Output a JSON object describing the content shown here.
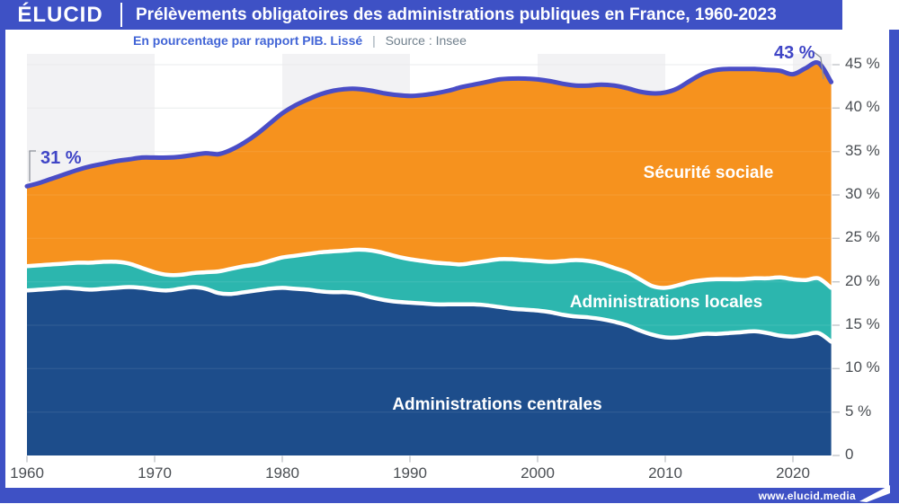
{
  "header": {
    "logo": "ÉLUCID",
    "title": "Prélèvements obligatoires des administrations publiques en France, 1960-2023"
  },
  "subtitle": {
    "metric": "En pourcentage par rapport PIB. Lissé",
    "separator": "|",
    "source": "Source : Insee"
  },
  "footer": {
    "url": "www.elucid.media",
    "flag_icon": "elucid-flag-icon"
  },
  "chart_data": {
    "type": "area",
    "stacked": true,
    "x_start": 1960,
    "x_end": 2023,
    "x_ticks": [
      "1960",
      "1970",
      "1980",
      "1990",
      "2000",
      "2010",
      "2020"
    ],
    "y_ticks": [
      "0",
      "5 %",
      "10 %",
      "15 %",
      "20 %",
      "25 %",
      "30 %",
      "35 %",
      "40 %",
      "45 %"
    ],
    "ylim": [
      0,
      45
    ],
    "grid": true,
    "legend_position": "inline-labels",
    "series": [
      {
        "name": "Administrations centrales",
        "color": "#1D4D8B",
        "values": [
          19.0,
          19.1,
          19.2,
          19.3,
          19.2,
          19.1,
          19.2,
          19.3,
          19.4,
          19.3,
          19.1,
          19.0,
          19.2,
          19.4,
          19.2,
          18.7,
          18.6,
          18.8,
          19.0,
          19.2,
          19.3,
          19.2,
          19.1,
          18.9,
          18.8,
          18.8,
          18.6,
          18.2,
          17.9,
          17.7,
          17.6,
          17.5,
          17.4,
          17.4,
          17.4,
          17.4,
          17.3,
          17.1,
          16.9,
          16.8,
          16.7,
          16.5,
          16.2,
          16.0,
          15.9,
          15.7,
          15.4,
          15.0,
          14.4,
          13.9,
          13.6,
          13.6,
          13.8,
          14.0,
          14.0,
          14.1,
          14.2,
          14.3,
          14.1,
          13.8,
          13.7,
          13.9,
          14.1,
          13.1
        ]
      },
      {
        "name": "Administrations locales",
        "color": "#2CB6AE",
        "values": [
          2.8,
          2.8,
          2.8,
          2.8,
          3.0,
          3.1,
          3.1,
          3.0,
          2.7,
          2.3,
          2.0,
          1.8,
          1.6,
          1.6,
          1.9,
          2.5,
          2.9,
          3.0,
          3.0,
          3.2,
          3.5,
          3.8,
          4.1,
          4.5,
          4.7,
          4.8,
          5.1,
          5.4,
          5.4,
          5.2,
          5.0,
          4.9,
          4.8,
          4.7,
          4.6,
          4.8,
          5.1,
          5.5,
          5.7,
          5.7,
          5.7,
          5.8,
          6.2,
          6.5,
          6.5,
          6.4,
          6.2,
          6.1,
          5.9,
          5.6,
          5.7,
          6.0,
          6.2,
          6.2,
          6.3,
          6.2,
          6.1,
          6.1,
          6.3,
          6.7,
          6.6,
          6.3,
          6.3,
          6.2
        ]
      },
      {
        "name": "Sécurité sociale",
        "color": "#F6921E",
        "values": [
          9.2,
          9.5,
          9.9,
          10.3,
          10.7,
          11.1,
          11.3,
          11.6,
          12.0,
          12.7,
          13.2,
          13.5,
          13.6,
          13.6,
          13.7,
          13.5,
          13.7,
          14.2,
          15.0,
          15.8,
          16.6,
          17.3,
          17.8,
          18.2,
          18.5,
          18.6,
          18.5,
          18.4,
          18.4,
          18.6,
          18.8,
          19.1,
          19.5,
          19.9,
          20.4,
          20.5,
          20.6,
          20.7,
          20.8,
          20.9,
          20.9,
          20.8,
          20.4,
          20.1,
          20.2,
          20.6,
          21.0,
          21.2,
          21.6,
          22.2,
          22.5,
          22.7,
          23.2,
          23.8,
          24.1,
          24.2,
          24.2,
          24.1,
          24.0,
          23.8,
          23.6,
          24.4,
          24.8,
          23.7
        ]
      }
    ],
    "annotations": {
      "start": {
        "label": "31 %",
        "year": 1960,
        "value": 31
      },
      "end": {
        "label": "43 %",
        "year": 2023,
        "value": 43
      }
    },
    "colors": {
      "total_line": "#4A4DC6",
      "decade_band": "#F2F2F4",
      "gridline": "#E8E9EB",
      "tick": "#C3C6CA",
      "axis_text": "#4A4E53",
      "separator_stroke": "#FFFFFF",
      "annotation_text": "#3F45C6",
      "leader_line": "#8E939B"
    }
  }
}
